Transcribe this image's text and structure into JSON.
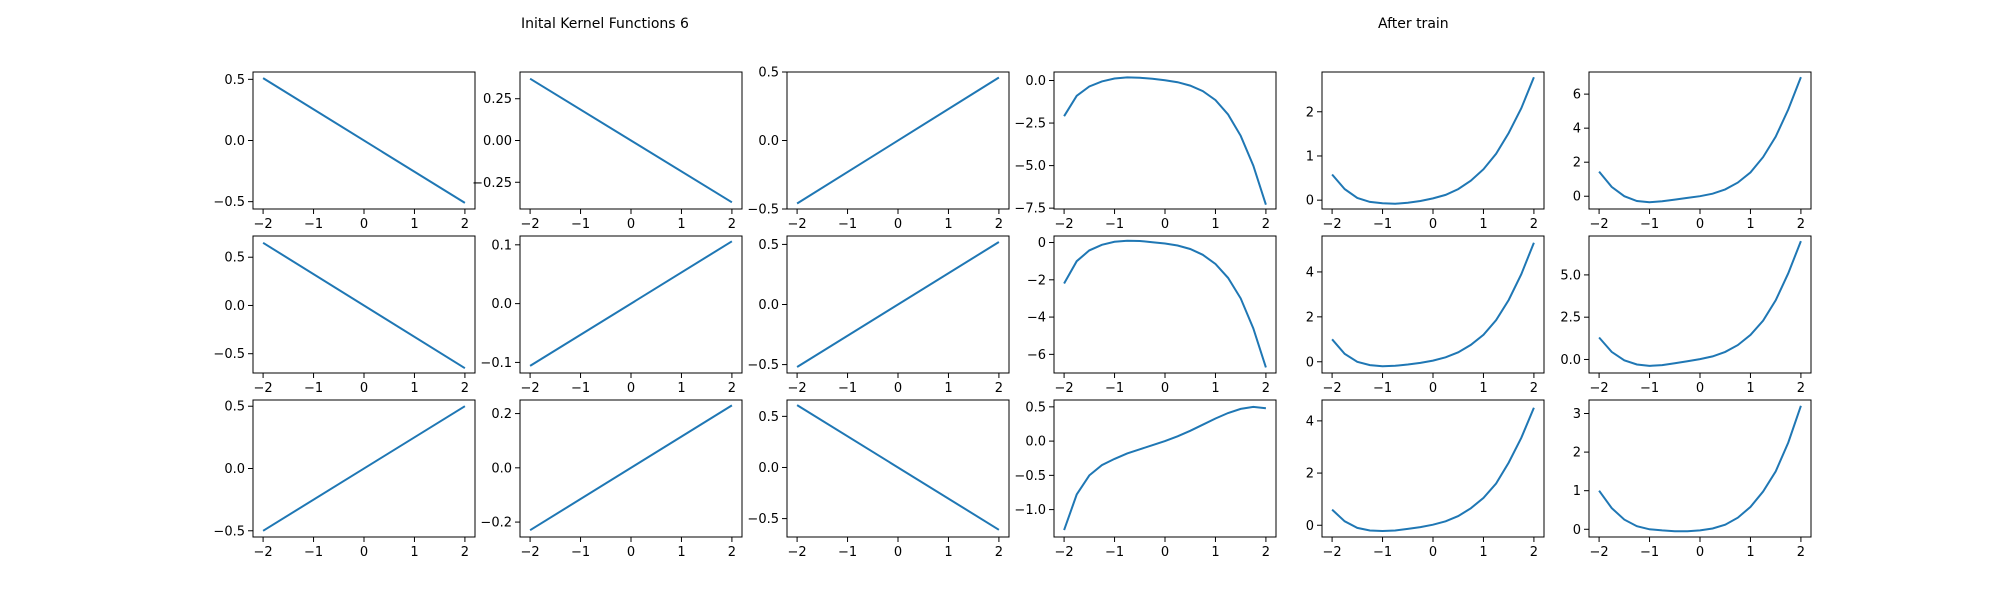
{
  "titles": {
    "left": "Inital Kernel Functions 6",
    "right": "After train"
  },
  "style": {
    "line_color": "#1f77b4",
    "axis_color": "#000000"
  },
  "chart_data": [
    {
      "panel": "r1c1",
      "type": "line",
      "x": [
        -2,
        2
      ],
      "y": [
        0.51,
        -0.51
      ],
      "xlim": [
        -2.2,
        2.2
      ],
      "ylim": [
        -0.56,
        0.56
      ],
      "xticks": [
        -2,
        -1,
        0,
        1,
        2
      ],
      "yticks": [
        0.5,
        0.0,
        -0.5
      ],
      "ytick_labels": [
        "0.5",
        "0.0",
        "−0.5"
      ]
    },
    {
      "panel": "r1c2",
      "type": "line",
      "x": [
        -2,
        2
      ],
      "y": [
        0.37,
        -0.37
      ],
      "xlim": [
        -2.2,
        2.2
      ],
      "ylim": [
        -0.41,
        0.41
      ],
      "xticks": [
        -2,
        -1,
        0,
        1,
        2
      ],
      "yticks": [
        0.25,
        0.0,
        -0.25
      ],
      "ytick_labels": [
        "0.25",
        "0.00",
        "−0.25"
      ]
    },
    {
      "panel": "r1c3",
      "type": "line",
      "x": [
        -2,
        2
      ],
      "y": [
        -0.46,
        0.46
      ],
      "xlim": [
        -2.2,
        2.2
      ],
      "ylim": [
        -0.5,
        0.5
      ],
      "xticks": [
        -2,
        -1,
        0,
        1,
        2
      ],
      "yticks": [
        0.5,
        0.0,
        -0.5
      ],
      "ytick_labels": [
        "0.5",
        "0.0",
        "−0.5"
      ]
    },
    {
      "panel": "r1c4",
      "type": "line",
      "x": [
        -2,
        -1.75,
        -1.5,
        -1.25,
        -1,
        -0.75,
        -0.5,
        -0.25,
        0,
        0.25,
        0.5,
        0.75,
        1,
        1.25,
        1.5,
        1.75,
        2
      ],
      "y": [
        -2.1,
        -0.9,
        -0.35,
        -0.05,
        0.12,
        0.18,
        0.16,
        0.1,
        0.02,
        -0.1,
        -0.3,
        -0.62,
        -1.15,
        -2.0,
        -3.25,
        -5.0,
        -7.3
      ],
      "xlim": [
        -2.2,
        2.2
      ],
      "ylim": [
        -7.55,
        0.5
      ],
      "xticks": [
        -2,
        -1,
        0,
        1,
        2
      ],
      "yticks": [
        0.0,
        -2.5,
        -5.0,
        -7.5
      ],
      "ytick_labels": [
        "0.0",
        "−2.5",
        "−5.0",
        "−7.5"
      ]
    },
    {
      "panel": "r1c5",
      "type": "line",
      "x": [
        -2,
        -1.75,
        -1.5,
        -1.25,
        -1,
        -0.75,
        -0.5,
        -0.25,
        0,
        0.25,
        0.5,
        0.75,
        1,
        1.25,
        1.5,
        1.75,
        2
      ],
      "y": [
        0.58,
        0.25,
        0.05,
        -0.04,
        -0.07,
        -0.08,
        -0.06,
        -0.02,
        0.04,
        0.12,
        0.25,
        0.44,
        0.7,
        1.05,
        1.52,
        2.08,
        2.78
      ],
      "xlim": [
        -2.2,
        2.2
      ],
      "ylim": [
        -0.2,
        2.9
      ],
      "xticks": [
        -2,
        -1,
        0,
        1,
        2
      ],
      "yticks": [
        2,
        1,
        0
      ],
      "ytick_labels": [
        "2",
        "1",
        "0"
      ]
    },
    {
      "panel": "r1c6",
      "type": "line",
      "x": [
        -2,
        -1.75,
        -1.5,
        -1.25,
        -1,
        -0.75,
        -0.5,
        -0.25,
        0,
        0.25,
        0.5,
        0.75,
        1,
        1.25,
        1.5,
        1.75,
        2
      ],
      "y": [
        1.45,
        0.55,
        0.0,
        -0.28,
        -0.35,
        -0.3,
        -0.2,
        -0.1,
        0.0,
        0.15,
        0.4,
        0.8,
        1.4,
        2.3,
        3.5,
        5.1,
        7.0
      ],
      "xlim": [
        -2.2,
        2.2
      ],
      "ylim": [
        -0.75,
        7.3
      ],
      "xticks": [
        -2,
        -1,
        0,
        1,
        2
      ],
      "yticks": [
        6,
        4,
        2,
        0
      ],
      "ytick_labels": [
        "6",
        "4",
        "2",
        "0"
      ]
    },
    {
      "panel": "r2c1",
      "type": "line",
      "x": [
        -2,
        2
      ],
      "y": [
        0.65,
        -0.65
      ],
      "xlim": [
        -2.2,
        2.2
      ],
      "ylim": [
        -0.7,
        0.72
      ],
      "xticks": [
        -2,
        -1,
        0,
        1,
        2
      ],
      "yticks": [
        0.5,
        0.0,
        -0.5
      ],
      "ytick_labels": [
        "0.5",
        "0.0",
        "−0.5"
      ]
    },
    {
      "panel": "r2c2",
      "type": "line",
      "x": [
        -2,
        2
      ],
      "y": [
        -0.106,
        0.106
      ],
      "xlim": [
        -2.2,
        2.2
      ],
      "ylim": [
        -0.118,
        0.115
      ],
      "xticks": [
        -2,
        -1,
        0,
        1,
        2
      ],
      "yticks": [
        0.1,
        0.0,
        -0.1
      ],
      "ytick_labels": [
        "0.1",
        "0.0",
        "−0.1"
      ]
    },
    {
      "panel": "r2c3",
      "type": "line",
      "x": [
        -2,
        2
      ],
      "y": [
        -0.52,
        0.52
      ],
      "xlim": [
        -2.2,
        2.2
      ],
      "ylim": [
        -0.57,
        0.57
      ],
      "xticks": [
        -2,
        -1,
        0,
        1,
        2
      ],
      "yticks": [
        0.5,
        0.0,
        -0.5
      ],
      "ytick_labels": [
        "0.5",
        "0.0",
        "−0.5"
      ]
    },
    {
      "panel": "r2c4",
      "type": "line",
      "x": [
        -2,
        -1.75,
        -1.5,
        -1.25,
        -1,
        -0.75,
        -0.5,
        -0.25,
        0,
        0.25,
        0.5,
        0.75,
        1,
        1.25,
        1.5,
        1.75,
        2
      ],
      "y": [
        -2.2,
        -1.0,
        -0.42,
        -0.12,
        0.04,
        0.1,
        0.08,
        0.02,
        -0.05,
        -0.16,
        -0.35,
        -0.66,
        -1.15,
        -1.9,
        -3.0,
        -4.6,
        -6.7
      ],
      "xlim": [
        -2.2,
        2.2
      ],
      "ylim": [
        -7.0,
        0.35
      ],
      "xticks": [
        -2,
        -1,
        0,
        1,
        2
      ],
      "yticks": [
        0,
        -2,
        -4,
        -6
      ],
      "ytick_labels": [
        "0",
        "−2",
        "−4",
        "−6"
      ]
    },
    {
      "panel": "r2c5",
      "type": "line",
      "x": [
        -2,
        -1.75,
        -1.5,
        -1.25,
        -1,
        -0.75,
        -0.5,
        -0.25,
        0,
        0.25,
        0.5,
        0.75,
        1,
        1.25,
        1.5,
        1.75,
        2
      ],
      "y": [
        1.0,
        0.35,
        0.0,
        -0.15,
        -0.2,
        -0.18,
        -0.12,
        -0.05,
        0.05,
        0.2,
        0.42,
        0.75,
        1.2,
        1.85,
        2.75,
        3.9,
        5.3
      ],
      "xlim": [
        -2.2,
        2.2
      ],
      "ylim": [
        -0.5,
        5.6
      ],
      "xticks": [
        -2,
        -1,
        0,
        1,
        2
      ],
      "yticks": [
        4,
        2,
        0
      ],
      "ytick_labels": [
        "4",
        "2",
        "0"
      ]
    },
    {
      "panel": "r2c6",
      "type": "line",
      "x": [
        -2,
        -1.75,
        -1.5,
        -1.25,
        -1,
        -0.75,
        -0.5,
        -0.25,
        0,
        0.25,
        0.5,
        0.75,
        1,
        1.25,
        1.5,
        1.75,
        2
      ],
      "y": [
        1.3,
        0.45,
        -0.05,
        -0.3,
        -0.38,
        -0.33,
        -0.22,
        -0.1,
        0.02,
        0.18,
        0.45,
        0.85,
        1.45,
        2.3,
        3.5,
        5.1,
        7.0
      ],
      "xlim": [
        -2.2,
        2.2
      ],
      "ylim": [
        -0.8,
        7.3
      ],
      "xticks": [
        -2,
        -1,
        0,
        1,
        2
      ],
      "yticks": [
        5.0,
        2.5,
        0.0
      ],
      "ytick_labels": [
        "5.0",
        "2.5",
        "0.0"
      ]
    },
    {
      "panel": "r3c1",
      "type": "line",
      "x": [
        -2,
        2
      ],
      "y": [
        -0.5,
        0.5
      ],
      "xlim": [
        -2.2,
        2.2
      ],
      "ylim": [
        -0.55,
        0.55
      ],
      "xticks": [
        -2,
        -1,
        0,
        1,
        2
      ],
      "yticks": [
        0.5,
        0.0,
        -0.5
      ],
      "ytick_labels": [
        "0.5",
        "0.0",
        "−0.5"
      ]
    },
    {
      "panel": "r3c2",
      "type": "line",
      "x": [
        -2,
        2
      ],
      "y": [
        -0.23,
        0.23
      ],
      "xlim": [
        -2.2,
        2.2
      ],
      "ylim": [
        -0.255,
        0.25
      ],
      "xticks": [
        -2,
        -1,
        0,
        1,
        2
      ],
      "yticks": [
        0.2,
        0.0,
        -0.2
      ],
      "ytick_labels": [
        "0.2",
        "0.0",
        "−0.2"
      ]
    },
    {
      "panel": "r3c3",
      "type": "line",
      "x": [
        -2,
        2
      ],
      "y": [
        0.61,
        -0.61
      ],
      "xlim": [
        -2.2,
        2.2
      ],
      "ylim": [
        -0.68,
        0.66
      ],
      "xticks": [
        -2,
        -1,
        0,
        1,
        2
      ],
      "yticks": [
        0.5,
        0.0,
        -0.5
      ],
      "ytick_labels": [
        "0.5",
        "0.0",
        "−0.5"
      ]
    },
    {
      "panel": "r3c4",
      "type": "line",
      "x": [
        -2,
        -1.75,
        -1.5,
        -1.25,
        -1,
        -0.75,
        -0.5,
        -0.25,
        0,
        0.25,
        0.5,
        0.75,
        1,
        1.25,
        1.5,
        1.75,
        2
      ],
      "y": [
        -1.3,
        -0.78,
        -0.5,
        -0.35,
        -0.26,
        -0.18,
        -0.12,
        -0.06,
        0.0,
        0.07,
        0.15,
        0.24,
        0.33,
        0.41,
        0.47,
        0.5,
        0.48
      ],
      "xlim": [
        -2.2,
        2.2
      ],
      "ylim": [
        -1.4,
        0.6
      ],
      "xticks": [
        -2,
        -1,
        0,
        1,
        2
      ],
      "yticks": [
        0.5,
        0.0,
        -0.5,
        -1.0
      ],
      "ytick_labels": [
        "0.5",
        "0.0",
        "−0.5",
        "−1.0"
      ]
    },
    {
      "panel": "r3c5",
      "type": "line",
      "x": [
        -2,
        -1.75,
        -1.5,
        -1.25,
        -1,
        -0.75,
        -0.5,
        -0.25,
        0,
        0.25,
        0.5,
        0.75,
        1,
        1.25,
        1.5,
        1.75,
        2
      ],
      "y": [
        0.6,
        0.15,
        -0.1,
        -0.2,
        -0.22,
        -0.2,
        -0.14,
        -0.07,
        0.02,
        0.15,
        0.35,
        0.65,
        1.05,
        1.6,
        2.4,
        3.35,
        4.5
      ],
      "xlim": [
        -2.2,
        2.2
      ],
      "ylim": [
        -0.45,
        4.8
      ],
      "xticks": [
        -2,
        -1,
        0,
        1,
        2
      ],
      "yticks": [
        4,
        2,
        0
      ],
      "ytick_labels": [
        "4",
        "2",
        "0"
      ]
    },
    {
      "panel": "r3c6",
      "type": "line",
      "x": [
        -2,
        -1.75,
        -1.5,
        -1.25,
        -1,
        -0.75,
        -0.5,
        -0.25,
        0,
        0.25,
        0.5,
        0.75,
        1,
        1.25,
        1.5,
        1.75,
        2
      ],
      "y": [
        1.0,
        0.55,
        0.25,
        0.08,
        0.0,
        -0.03,
        -0.05,
        -0.05,
        -0.03,
        0.02,
        0.12,
        0.3,
        0.58,
        0.98,
        1.5,
        2.25,
        3.2
      ],
      "xlim": [
        -2.2,
        2.2
      ],
      "ylim": [
        -0.2,
        3.35
      ],
      "xticks": [
        -2,
        -1,
        0,
        1,
        2
      ],
      "yticks": [
        3,
        2,
        1,
        0
      ],
      "ytick_labels": [
        "3",
        "2",
        "1",
        "0"
      ]
    }
  ]
}
